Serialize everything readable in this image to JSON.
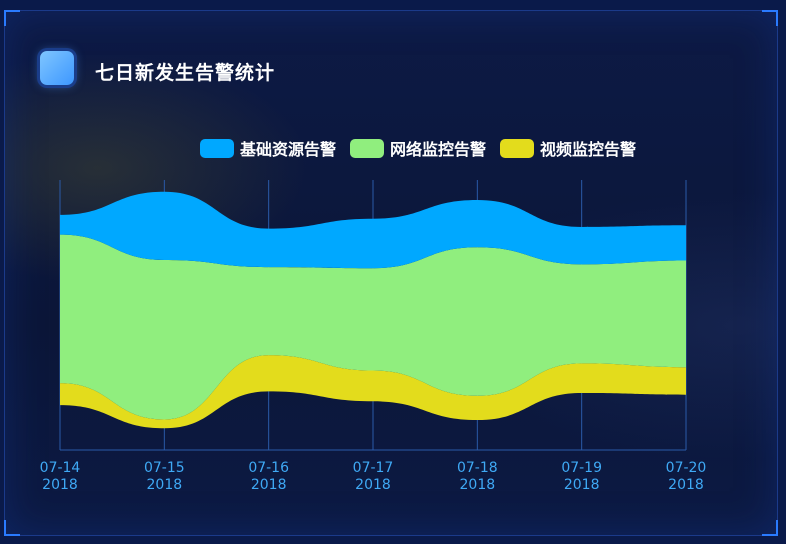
{
  "title": "七日新发生告警统计",
  "chart_data": {
    "type": "area",
    "stacked": true,
    "style": "themeRiver",
    "title": "七日新发生告警统计",
    "categories": [
      {
        "date": "07-14",
        "year": "2018"
      },
      {
        "date": "07-15",
        "year": "2018"
      },
      {
        "date": "07-16",
        "year": "2018"
      },
      {
        "date": "07-17",
        "year": "2018"
      },
      {
        "date": "07-18",
        "year": "2018"
      },
      {
        "date": "07-19",
        "year": "2018"
      },
      {
        "date": "07-20",
        "year": "2018"
      }
    ],
    "series": [
      {
        "name": "视频监控告警",
        "color": "#e3dc1c",
        "values": [
          20,
          8,
          33,
          28,
          22,
          27,
          25
        ]
      },
      {
        "name": "网络监控告警",
        "color": "#90ee7e",
        "values": [
          135,
          145,
          80,
          93,
          135,
          90,
          97
        ]
      },
      {
        "name": "基础资源告警",
        "color": "#00a8ff",
        "values": [
          18,
          62,
          35,
          45,
          43,
          34,
          32
        ]
      }
    ],
    "legend_order": [
      "基础资源告警",
      "网络监控告警",
      "视频监控告警"
    ],
    "legend_position": "top-right"
  }
}
